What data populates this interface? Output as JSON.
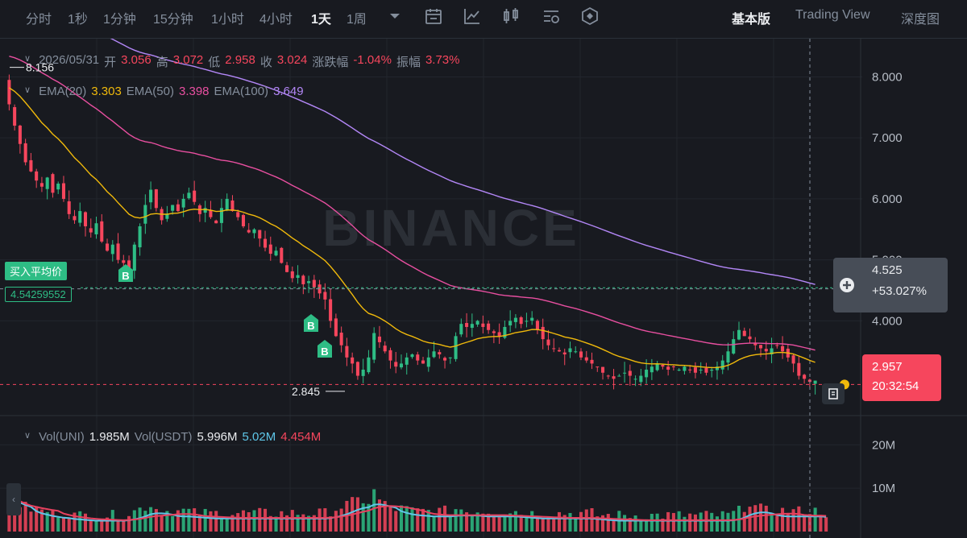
{
  "toolbar": {
    "timeframes": [
      "分时",
      "1秒",
      "1分钟",
      "15分钟",
      "1小时",
      "4小时",
      "1天",
      "1周"
    ],
    "active_timeframe": "1天",
    "views": [
      "基本版",
      "Trading View",
      "深度图"
    ],
    "active_view": "基本版",
    "tool_icons": [
      "chevron-down-icon",
      "calendar-icon",
      "line-chart-icon",
      "candlestick-icon",
      "settings-icon",
      "layer-icon"
    ]
  },
  "ohlc": {
    "date": "2026/05/31",
    "open_label": "开",
    "open": "3.056",
    "high_label": "高",
    "high": "3.072",
    "low_label": "低",
    "low": "2.958",
    "close_label": "收",
    "close": "3.024",
    "change_label": "涨跌幅",
    "change": "-1.04%",
    "amplitude_label": "振幅",
    "amplitude": "3.73%"
  },
  "ema": {
    "ema20_label": "EMA(20)",
    "ema20": "3.303",
    "ema50_label": "EMA(50)",
    "ema50": "3.398",
    "ema100_label": "EMA(100)",
    "ema100": "3.649"
  },
  "volume_info": {
    "vol_uni_label": "Vol(UNI)",
    "vol_uni": "1.985M",
    "vol_usdt_label": "Vol(USDT)",
    "vol_usdt": "5.996M",
    "ma1": "5.02M",
    "ma2": "4.454M"
  },
  "markers": {
    "high_label": "8.156",
    "low_label": "2.845",
    "avg_price_label": "买入平均价",
    "avg_price_value": "4.54259552",
    "buy_label": "B"
  },
  "crosshair": {
    "price": "4.525",
    "change": "+53.027%"
  },
  "last_price": {
    "price": "2.957",
    "countdown": "20:32:54"
  },
  "watermark": "BINANCE",
  "colors": {
    "up": "#2ebd85",
    "down": "#f6465d",
    "ema20": "#f0b90b",
    "ema50": "#e84fa0",
    "ema100": "#b387f7",
    "vol_ma1": "#5ec6e8",
    "vol_ma2": "#e8415f",
    "background": "#181a20"
  },
  "chart_data": {
    "type": "candlestick",
    "y_axis_ticks": [
      "8.000",
      "7.000",
      "6.000",
      "5.000",
      "4.000"
    ],
    "ylim": [
      2.5,
      8.6
    ],
    "volume_axis_ticks": [
      "20M",
      "10M"
    ],
    "volume_ylim": [
      0,
      26
    ],
    "closes": [
      7.55,
      7.2,
      6.9,
      6.6,
      6.45,
      6.3,
      6.2,
      6.35,
      6.1,
      6.25,
      6.0,
      5.75,
      5.65,
      5.8,
      5.55,
      5.45,
      5.6,
      5.3,
      5.15,
      5.25,
      5.0,
      4.95,
      4.85,
      5.25,
      5.55,
      5.9,
      6.15,
      5.85,
      5.65,
      5.75,
      5.9,
      5.8,
      6.0,
      6.1,
      5.95,
      5.75,
      5.85,
      5.7,
      5.6,
      5.85,
      6.0,
      5.8,
      5.7,
      5.55,
      5.45,
      5.5,
      5.35,
      5.2,
      5.1,
      5.15,
      4.95,
      4.8,
      4.7,
      4.75,
      4.6,
      4.65,
      4.55,
      4.45,
      4.35,
      4.0,
      3.75,
      3.6,
      3.4,
      3.3,
      3.1,
      3.2,
      3.4,
      3.8,
      3.65,
      3.5,
      3.35,
      3.25,
      3.3,
      3.4,
      3.45,
      3.35,
      3.3,
      3.4,
      3.5,
      3.45,
      3.35,
      3.4,
      3.75,
      3.95,
      3.9,
      3.95,
      4.0,
      3.9,
      3.85,
      3.8,
      3.75,
      3.9,
      4.0,
      4.05,
      3.95,
      4.0,
      4.05,
      3.85,
      3.7,
      3.6,
      3.55,
      3.5,
      3.45,
      3.55,
      3.5,
      3.4,
      3.35,
      3.3,
      3.25,
      3.15,
      3.1,
      3.05,
      3.1,
      3.15,
      3.1,
      3.05,
      3.1,
      3.2,
      3.25,
      3.3,
      3.25,
      3.2,
      3.25,
      3.2,
      3.25,
      3.2,
      3.15,
      3.2,
      3.15,
      3.2,
      3.25,
      3.35,
      3.5,
      3.7,
      3.85,
      3.75,
      3.7,
      3.6,
      3.55,
      3.5,
      3.55,
      3.6,
      3.5,
      3.4,
      3.3,
      3.1,
      3.05,
      3.0,
      3.02
    ],
    "volumes": [
      9,
      6,
      5,
      4.5,
      4,
      4,
      3.5,
      3.5,
      3,
      3,
      3,
      3,
      2.5,
      2.5,
      2.5,
      2.5,
      2.5,
      2.5,
      2.5,
      2.5,
      2.5,
      2.5,
      3,
      3.5,
      4,
      4.5,
      5,
      4,
      3.5,
      3.5,
      3.5,
      3.5,
      3.5,
      3.5,
      3,
      3,
      3,
      3,
      3,
      3,
      3,
      3,
      3,
      3,
      3,
      3,
      3,
      3,
      3,
      3,
      3,
      3,
      3,
      3,
      3,
      3,
      3,
      3,
      3,
      3.5,
      4,
      4.5,
      5,
      5.5,
      6,
      6,
      5.5,
      8,
      6,
      5,
      4.5,
      4,
      4,
      4,
      3.5,
      3.5,
      3.5,
      3.5,
      3.5,
      3.5,
      3.5,
      3.5,
      4,
      4,
      3.5,
      3.5,
      3.5,
      3.5,
      3.5,
      3.5,
      3.5,
      3.5,
      3.5,
      3.5,
      3,
      3,
      3,
      3,
      3,
      3,
      3,
      3,
      3,
      3,
      3,
      3,
      3,
      3,
      2.5,
      2.5,
      2.5,
      2.5,
      2.5,
      2.5,
      2.5,
      2.5,
      2.5,
      2.5,
      2.5,
      2.5,
      2.5,
      2.5,
      2.5,
      2.5,
      2.5,
      2.5,
      2.5,
      2.5,
      2.5,
      2.5,
      2.5,
      2.5,
      2.5,
      3,
      3.5,
      4.5,
      5.5,
      4.5,
      4,
      3.5,
      3.5,
      3.5,
      3.5,
      3.5,
      3.5,
      3.5,
      3.5,
      3.5,
      3.5,
      3.5,
      3
    ]
  }
}
